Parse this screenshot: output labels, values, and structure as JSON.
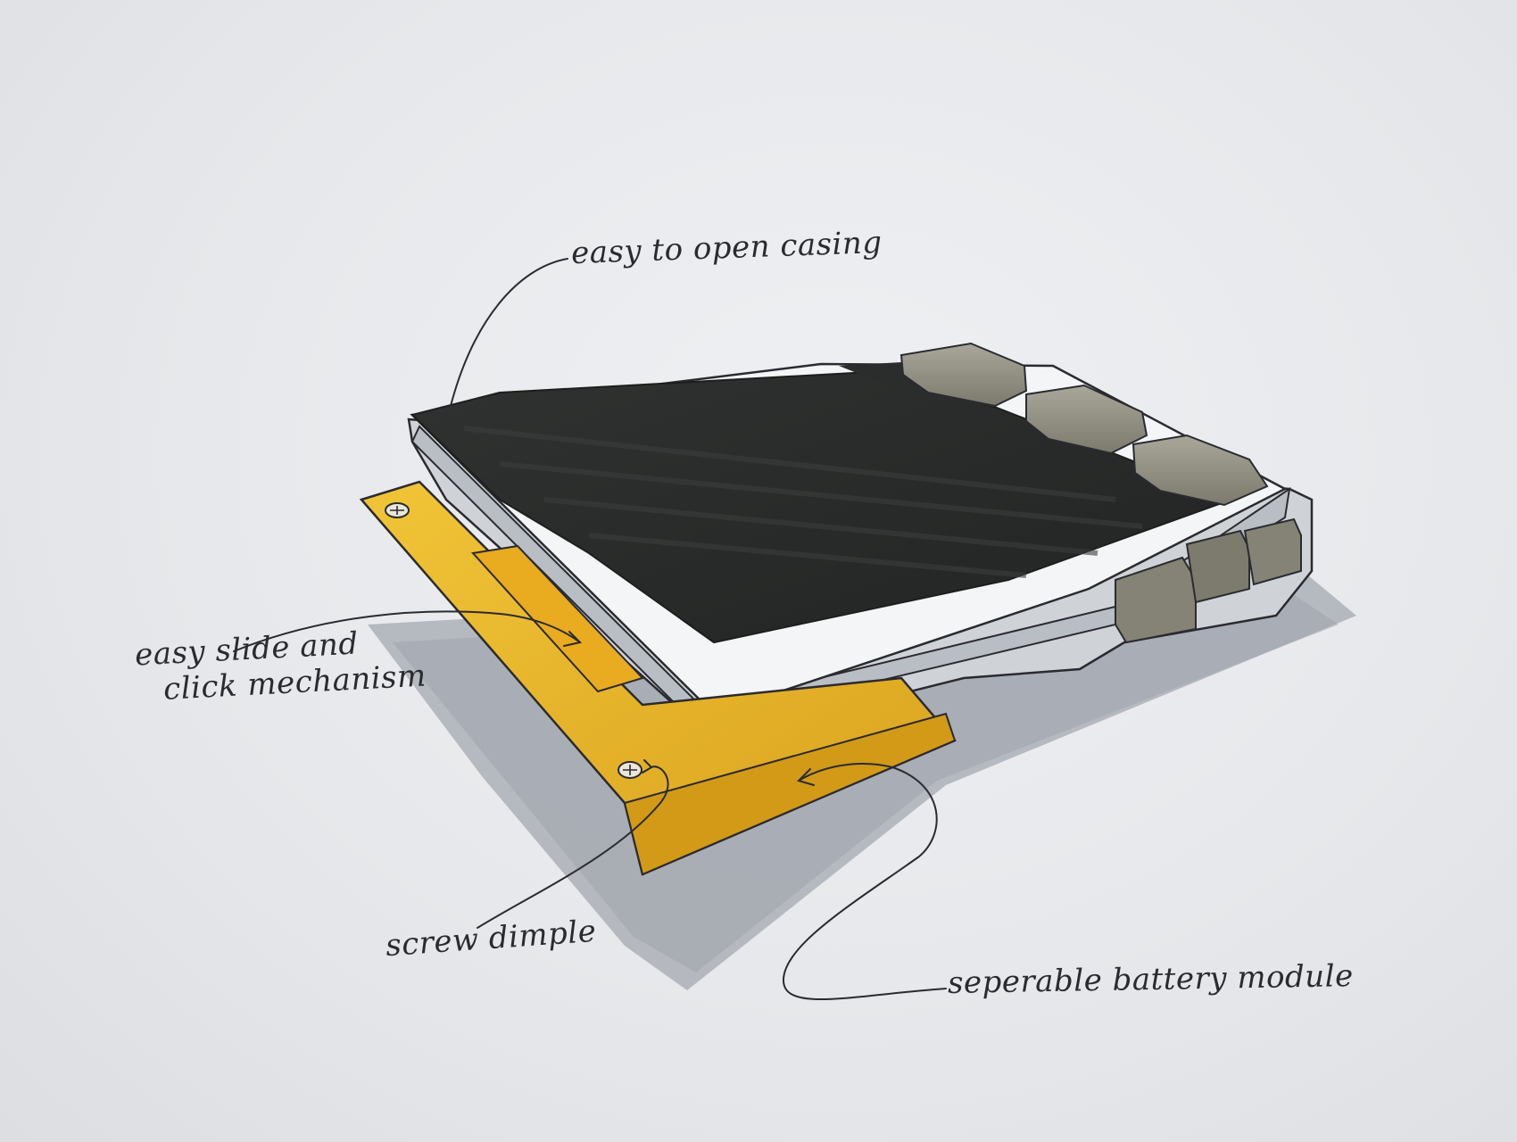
{
  "annotations": {
    "casing": "easy to open casing",
    "slide_line1": "easy slide and",
    "slide_line2": "click mechanism",
    "screw": "screw dimple",
    "battery": "seperable battery module"
  },
  "colors": {
    "paper": "#e6e8eb",
    "shadow": "#aeb2b9",
    "casing_dark": "#2b2d2c",
    "casing_frame": "#cfd3d8",
    "battery_yellow": "#e7b229",
    "keys": "#8f8d7f",
    "ink": "#2a2b30"
  }
}
